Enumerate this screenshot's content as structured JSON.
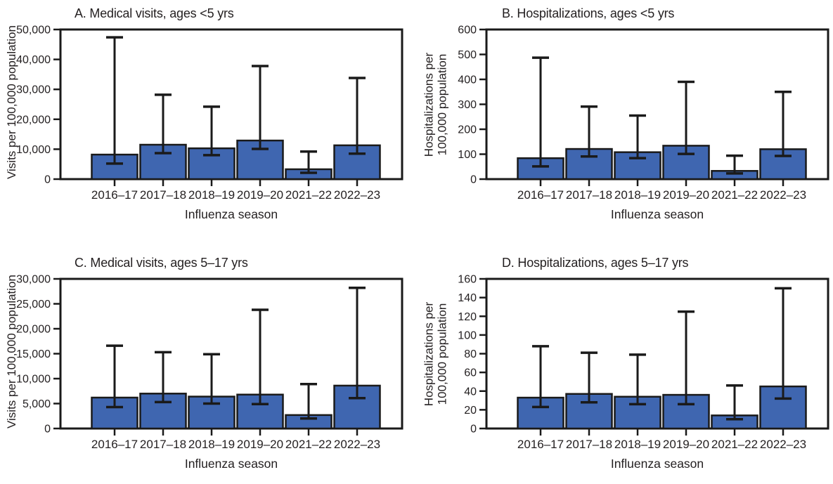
{
  "figure": {
    "background": "#ffffff",
    "grid": "off",
    "legend": "none",
    "x_axis_title": "Influenza season"
  },
  "colors": {
    "bar_fill": "#3f66b0",
    "bar_stroke": "#1a1a1a",
    "axis": "#1a1a1a",
    "text": "#231f20"
  },
  "chart_data": [
    {
      "type": "bar",
      "panel": "A",
      "title": "A. Medical visits, ages <5 yrs",
      "ylabel_lines": [
        "Visits per 100,000 population"
      ],
      "xlabel": "Influenza season",
      "categories": [
        "2016–17",
        "2017–18",
        "2018–19",
        "2019–20",
        "2021–22",
        "2022–23"
      ],
      "values": [
        8200,
        11500,
        10300,
        12900,
        3300,
        11300
      ],
      "err_low": [
        5200,
        8700,
        8000,
        10100,
        2100,
        8500
      ],
      "err_high": [
        47400,
        28200,
        24200,
        37800,
        9200,
        33800
      ],
      "ylim": [
        0,
        50000
      ],
      "ytick_values": [
        0,
        10000,
        20000,
        30000,
        40000,
        50000
      ],
      "ytick_labels": [
        "0",
        "10,000",
        "20,000",
        "30,000",
        "40,000",
        "50,000"
      ]
    },
    {
      "type": "bar",
      "panel": "B",
      "title": "B. Hospitalizations, ages <5 yrs",
      "ylabel_lines": [
        "Hospitalizations per",
        "100,000 population"
      ],
      "xlabel": "Influenza season",
      "categories": [
        "2016–17",
        "2017–18",
        "2018–19",
        "2019–20",
        "2021–22",
        "2022–23"
      ],
      "values": [
        84,
        121,
        108,
        134,
        33,
        120
      ],
      "err_low": [
        51,
        91,
        84,
        101,
        23,
        93
      ],
      "err_high": [
        487,
        291,
        255,
        390,
        94,
        350
      ],
      "ylim": [
        0,
        600
      ],
      "ytick_values": [
        0,
        100,
        200,
        300,
        400,
        500,
        600
      ],
      "ytick_labels": [
        "0",
        "100",
        "200",
        "300",
        "400",
        "500",
        "600"
      ]
    },
    {
      "type": "bar",
      "panel": "C",
      "title": "C. Medical visits, ages 5–17 yrs",
      "ylabel_lines": [
        "Visits per 100,000 population"
      ],
      "xlabel": "Influenza season",
      "categories": [
        "2016–17",
        "2017–18",
        "2018–19",
        "2019–20",
        "2021–22",
        "2022–23"
      ],
      "values": [
        6200,
        7000,
        6400,
        6800,
        2700,
        8600
      ],
      "err_low": [
        4300,
        5300,
        5000,
        4900,
        2000,
        6100
      ],
      "err_high": [
        16600,
        15300,
        14900,
        23800,
        8900,
        28200
      ],
      "ylim": [
        0,
        30000
      ],
      "ytick_values": [
        0,
        5000,
        10000,
        15000,
        20000,
        25000,
        30000
      ],
      "ytick_labels": [
        "0",
        "5,000",
        "10,000",
        "15,000",
        "20,000",
        "25,000",
        "30,000"
      ]
    },
    {
      "type": "bar",
      "panel": "D",
      "title": "D. Hospitalizations, ages 5–17 yrs",
      "ylabel_lines": [
        "Hospitalizations per",
        "100,000 population"
      ],
      "xlabel": "Influenza season",
      "categories": [
        "2016–17",
        "2017–18",
        "2018–19",
        "2019–20",
        "2021–22",
        "2022–23"
      ],
      "values": [
        33,
        37,
        34,
        36,
        14,
        45
      ],
      "err_low": [
        23,
        28,
        26,
        26,
        10,
        32
      ],
      "err_high": [
        88,
        81,
        79,
        125,
        46,
        150
      ],
      "ylim": [
        0,
        160
      ],
      "ytick_values": [
        0,
        20,
        40,
        60,
        80,
        100,
        120,
        140,
        160
      ],
      "ytick_labels": [
        "0",
        "20",
        "40",
        "60",
        "80",
        "100",
        "120",
        "140",
        "160"
      ]
    }
  ]
}
